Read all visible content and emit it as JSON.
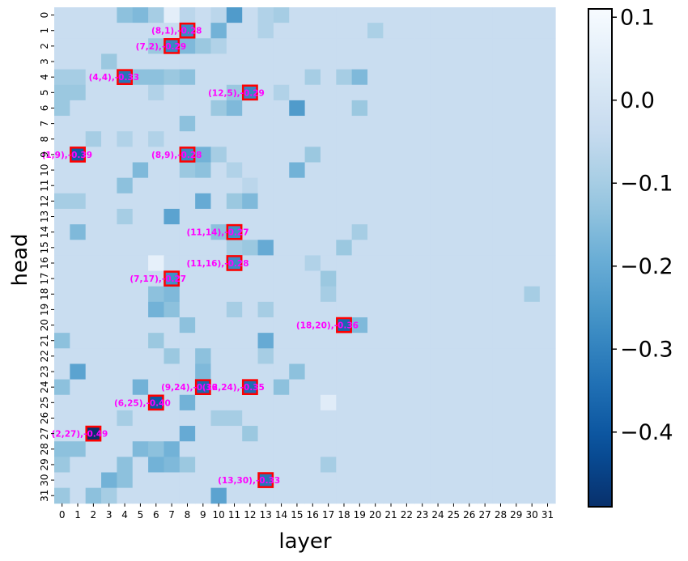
{
  "chart_data": {
    "type": "heatmap",
    "xlabel": "layer",
    "ylabel": "head",
    "x_ticks": [
      "0",
      "1",
      "2",
      "3",
      "4",
      "5",
      "6",
      "7",
      "8",
      "9",
      "10",
      "11",
      "12",
      "13",
      "14",
      "15",
      "16",
      "17",
      "18",
      "19",
      "20",
      "21",
      "22",
      "23",
      "24",
      "25",
      "26",
      "27",
      "28",
      "29",
      "30",
      "31"
    ],
    "y_ticks": [
      "0",
      "1",
      "2",
      "3",
      "4",
      "5",
      "6",
      "7",
      "8",
      "9",
      "10",
      "11",
      "12",
      "13",
      "14",
      "15",
      "16",
      "17",
      "18",
      "19",
      "20",
      "21",
      "22",
      "23",
      "24",
      "25",
      "26",
      "27",
      "28",
      "29",
      "30",
      "31"
    ],
    "colorbar": {
      "colormap": "Blues_r",
      "vmin": -0.49,
      "vmax": 0.11,
      "ticks": [
        0.1,
        0.0,
        -0.1,
        -0.2,
        -0.3,
        -0.4
      ],
      "tick_labels": [
        "0.1",
        "0.0",
        "−0.1",
        "−0.2",
        "−0.3",
        "−0.4"
      ]
    },
    "background_value": -0.03,
    "cells": [
      [
        0,
        4,
        -0.14
      ],
      [
        0,
        5,
        -0.16
      ],
      [
        0,
        6,
        -0.1
      ],
      [
        0,
        7,
        0.05
      ],
      [
        0,
        8,
        -0.06
      ],
      [
        0,
        10,
        -0.06
      ],
      [
        0,
        11,
        -0.24
      ],
      [
        0,
        13,
        -0.08
      ],
      [
        0,
        14,
        -0.1
      ],
      [
        1,
        8,
        -0.28
      ],
      [
        1,
        10,
        -0.18
      ],
      [
        1,
        13,
        -0.08
      ],
      [
        1,
        20,
        -0.09
      ],
      [
        2,
        6,
        -0.12
      ],
      [
        2,
        7,
        -0.29
      ],
      [
        2,
        8,
        -0.16
      ],
      [
        2,
        9,
        -0.12
      ],
      [
        2,
        10,
        -0.08
      ],
      [
        3,
        3,
        -0.12
      ],
      [
        4,
        0,
        -0.1
      ],
      [
        4,
        1,
        -0.1
      ],
      [
        4,
        4,
        -0.33
      ],
      [
        4,
        5,
        -0.14
      ],
      [
        4,
        6,
        -0.14
      ],
      [
        4,
        7,
        -0.12
      ],
      [
        4,
        8,
        -0.14
      ],
      [
        4,
        16,
        -0.1
      ],
      [
        4,
        18,
        -0.1
      ],
      [
        4,
        19,
        -0.16
      ],
      [
        5,
        0,
        -0.12
      ],
      [
        5,
        1,
        -0.12
      ],
      [
        5,
        6,
        -0.08
      ],
      [
        5,
        11,
        -0.12
      ],
      [
        5,
        12,
        -0.29
      ],
      [
        5,
        14,
        -0.08
      ],
      [
        6,
        0,
        -0.12
      ],
      [
        6,
        10,
        -0.12
      ],
      [
        6,
        11,
        -0.16
      ],
      [
        6,
        15,
        -0.24
      ],
      [
        6,
        19,
        -0.12
      ],
      [
        7,
        8,
        -0.14
      ],
      [
        8,
        2,
        -0.1
      ],
      [
        8,
        4,
        -0.08
      ],
      [
        8,
        6,
        -0.08
      ],
      [
        9,
        1,
        -0.39
      ],
      [
        9,
        8,
        -0.28
      ],
      [
        9,
        9,
        -0.18
      ],
      [
        9,
        10,
        -0.1
      ],
      [
        9,
        16,
        -0.12
      ],
      [
        10,
        5,
        -0.16
      ],
      [
        10,
        8,
        -0.12
      ],
      [
        10,
        9,
        -0.14
      ],
      [
        10,
        11,
        -0.08
      ],
      [
        10,
        15,
        -0.18
      ],
      [
        11,
        4,
        -0.14
      ],
      [
        11,
        12,
        -0.06
      ],
      [
        12,
        0,
        -0.1
      ],
      [
        12,
        1,
        -0.1
      ],
      [
        12,
        9,
        -0.2
      ],
      [
        12,
        11,
        -0.12
      ],
      [
        12,
        12,
        -0.16
      ],
      [
        13,
        4,
        -0.1
      ],
      [
        13,
        7,
        -0.22
      ],
      [
        14,
        1,
        -0.16
      ],
      [
        14,
        10,
        -0.14
      ],
      [
        14,
        11,
        -0.27
      ],
      [
        14,
        19,
        -0.1
      ],
      [
        15,
        11,
        -0.1
      ],
      [
        15,
        12,
        -0.12
      ],
      [
        15,
        13,
        -0.2
      ],
      [
        15,
        18,
        -0.12
      ],
      [
        16,
        6,
        0.06
      ],
      [
        16,
        11,
        -0.28
      ],
      [
        16,
        16,
        -0.08
      ],
      [
        17,
        7,
        -0.27
      ],
      [
        17,
        17,
        -0.12
      ],
      [
        18,
        6,
        -0.14
      ],
      [
        18,
        7,
        -0.16
      ],
      [
        18,
        17,
        -0.1
      ],
      [
        18,
        30,
        -0.1
      ],
      [
        19,
        6,
        -0.18
      ],
      [
        19,
        7,
        -0.14
      ],
      [
        19,
        11,
        -0.1
      ],
      [
        19,
        13,
        -0.1
      ],
      [
        20,
        8,
        -0.14
      ],
      [
        20,
        18,
        -0.36
      ],
      [
        20,
        19,
        -0.16
      ],
      [
        21,
        0,
        -0.14
      ],
      [
        21,
        6,
        -0.12
      ],
      [
        21,
        13,
        -0.2
      ],
      [
        22,
        7,
        -0.12
      ],
      [
        22,
        9,
        -0.14
      ],
      [
        22,
        13,
        -0.1
      ],
      [
        23,
        1,
        -0.22
      ],
      [
        23,
        9,
        -0.16
      ],
      [
        23,
        15,
        -0.14
      ],
      [
        24,
        0,
        -0.14
      ],
      [
        24,
        5,
        -0.18
      ],
      [
        24,
        9,
        -0.36
      ],
      [
        24,
        12,
        -0.35
      ],
      [
        24,
        14,
        -0.14
      ],
      [
        25,
        6,
        -0.4
      ],
      [
        25,
        8,
        -0.18
      ],
      [
        25,
        17,
        0.04
      ],
      [
        26,
        4,
        -0.1
      ],
      [
        26,
        10,
        -0.1
      ],
      [
        26,
        11,
        -0.1
      ],
      [
        27,
        2,
        -0.49
      ],
      [
        27,
        8,
        -0.2
      ],
      [
        27,
        12,
        -0.12
      ],
      [
        28,
        0,
        -0.14
      ],
      [
        28,
        1,
        -0.14
      ],
      [
        28,
        5,
        -0.16
      ],
      [
        28,
        6,
        -0.14
      ],
      [
        28,
        7,
        -0.18
      ],
      [
        29,
        0,
        -0.12
      ],
      [
        29,
        4,
        -0.14
      ],
      [
        29,
        6,
        -0.18
      ],
      [
        29,
        7,
        -0.16
      ],
      [
        29,
        8,
        -0.12
      ],
      [
        29,
        17,
        -0.1
      ],
      [
        30,
        3,
        -0.18
      ],
      [
        30,
        4,
        -0.14
      ],
      [
        30,
        13,
        -0.33
      ],
      [
        31,
        0,
        -0.12
      ],
      [
        31,
        2,
        -0.14
      ],
      [
        31,
        3,
        -0.1
      ],
      [
        31,
        10,
        -0.22
      ]
    ],
    "highlighted": [
      {
        "layer": 8,
        "head": 1,
        "value": -0.28,
        "label": "(8,1),-0.28"
      },
      {
        "layer": 7,
        "head": 2,
        "value": -0.29,
        "label": "(7,2),-0.29"
      },
      {
        "layer": 4,
        "head": 4,
        "value": -0.33,
        "label": "(4,4),-0.33"
      },
      {
        "layer": 12,
        "head": 5,
        "value": -0.29,
        "label": "(12,5),-0.29"
      },
      {
        "layer": 1,
        "head": 9,
        "value": -0.39,
        "label": "(1,9),-0.39"
      },
      {
        "layer": 8,
        "head": 9,
        "value": -0.28,
        "label": "(8,9),-0.28"
      },
      {
        "layer": 11,
        "head": 14,
        "value": -0.27,
        "label": "(11,14),-0.27"
      },
      {
        "layer": 11,
        "head": 16,
        "value": -0.28,
        "label": "(11,16),-0.28"
      },
      {
        "layer": 7,
        "head": 17,
        "value": -0.27,
        "label": "(7,17),-0.27"
      },
      {
        "layer": 18,
        "head": 20,
        "value": -0.36,
        "label": "(18,20),-0.36"
      },
      {
        "layer": 9,
        "head": 24,
        "value": -0.36,
        "label": "(9,24),-0.36"
      },
      {
        "layer": 12,
        "head": 24,
        "value": -0.35,
        "label": "(12,24),-0.35"
      },
      {
        "layer": 6,
        "head": 25,
        "value": -0.4,
        "label": "(6,25),-0.40"
      },
      {
        "layer": 2,
        "head": 27,
        "value": -0.49,
        "label": "(2,27),-0.49"
      },
      {
        "layer": 13,
        "head": 30,
        "value": -0.33,
        "label": "(13,30),-0.33"
      }
    ],
    "highlight_color": "#ff0000",
    "annotation_color": "#ff00ff"
  }
}
